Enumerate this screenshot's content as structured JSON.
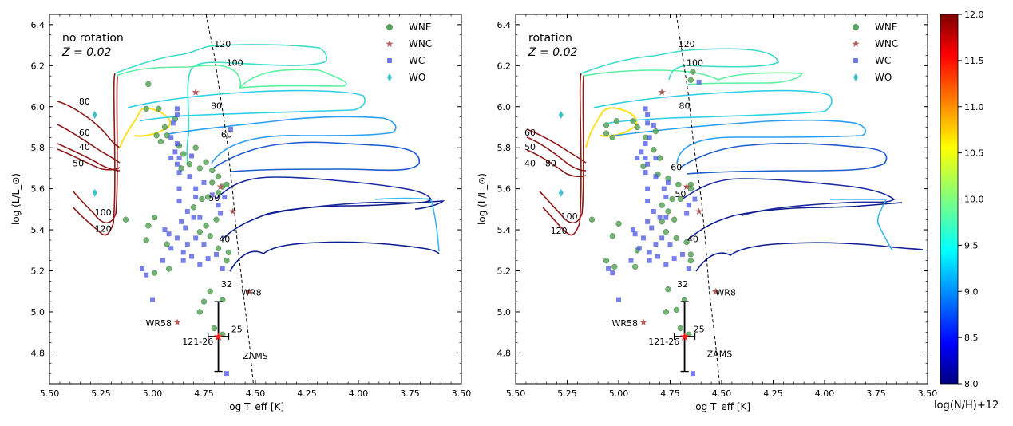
{
  "colorbar": {
    "label": "log(N/H)+12",
    "ticks": [
      "12.0",
      "11.5",
      "11.0",
      "10.5",
      "10.0",
      "9.5",
      "9.0",
      "8.5",
      "8.0"
    ],
    "range": [
      8.0,
      12.0
    ]
  },
  "chart_data": [
    {
      "type": "scatter",
      "panel": "left",
      "annotation_title": "no rotation",
      "annotation_z": "Z = 0.02",
      "xlabel": "log T_eff  [K]",
      "ylabel": "log (L/L_⊙)",
      "xlim": [
        5.5,
        3.5
      ],
      "ylim": [
        4.65,
        6.45
      ],
      "xticks": [
        "5.50",
        "5.25",
        "5.00",
        "4.75",
        "4.50",
        "4.25",
        "4.00",
        "3.75",
        "3.50"
      ],
      "yticks": [
        "4.8",
        "5.0",
        "5.2",
        "5.4",
        "5.6",
        "5.8",
        "6.0",
        "6.2",
        "6.4"
      ],
      "legend": [
        "WNE",
        "WNC",
        "WC",
        "WO"
      ],
      "track_labels": [
        {
          "text": "120",
          "x": 4.66,
          "y": 6.29
        },
        {
          "text": "100",
          "x": 4.6,
          "y": 6.2
        },
        {
          "text": "80",
          "x": 4.69,
          "y": 5.99
        },
        {
          "text": "60",
          "x": 4.64,
          "y": 5.85
        },
        {
          "text": "50",
          "x": 4.7,
          "y": 5.54
        },
        {
          "text": "40",
          "x": 4.65,
          "y": 5.34
        },
        {
          "text": "32",
          "x": 4.64,
          "y": 5.12
        },
        {
          "text": "25",
          "x": 4.59,
          "y": 4.9
        },
        {
          "text": "80",
          "x": 5.33,
          "y": 6.01
        },
        {
          "text": "60",
          "x": 5.33,
          "y": 5.86
        },
        {
          "text": "40",
          "x": 5.33,
          "y": 5.79
        },
        {
          "text": "50",
          "x": 5.36,
          "y": 5.71
        },
        {
          "text": "100",
          "x": 5.24,
          "y": 5.47
        },
        {
          "text": "120",
          "x": 5.24,
          "y": 5.39
        },
        {
          "text": "ZAMS",
          "x": 4.5,
          "y": 4.77
        },
        {
          "text": "WR8",
          "x": 4.52,
          "y": 5.08
        },
        {
          "text": "WR58",
          "x": 4.97,
          "y": 4.93
        },
        {
          "text": "121-26",
          "x": 4.78,
          "y": 4.84
        }
      ],
      "wne": [
        [
          5.02,
          6.11
        ],
        [
          5.03,
          5.99
        ],
        [
          4.97,
          5.99
        ],
        [
          4.94,
          5.9
        ],
        [
          4.98,
          5.86
        ],
        [
          4.96,
          5.83
        ],
        [
          4.93,
          5.86
        ],
        [
          4.89,
          5.94
        ],
        [
          4.87,
          5.81
        ],
        [
          4.85,
          5.77
        ],
        [
          4.86,
          5.7
        ],
        [
          4.82,
          5.72
        ],
        [
          4.79,
          5.8
        ],
        [
          4.77,
          5.7
        ],
        [
          4.74,
          5.73
        ],
        [
          4.71,
          5.69
        ],
        [
          4.68,
          5.66
        ],
        [
          4.66,
          5.61
        ],
        [
          4.71,
          5.63
        ],
        [
          4.76,
          5.55
        ],
        [
          4.73,
          5.56
        ],
        [
          4.8,
          5.51
        ],
        [
          4.74,
          5.42
        ],
        [
          4.69,
          5.45
        ],
        [
          4.77,
          5.39
        ],
        [
          4.72,
          5.37
        ],
        [
          4.68,
          5.31
        ],
        [
          4.63,
          5.29
        ],
        [
          4.64,
          5.25
        ],
        [
          4.93,
          5.33
        ],
        [
          4.99,
          5.46
        ],
        [
          5.02,
          5.42
        ],
        [
          5.03,
          5.35
        ],
        [
          4.99,
          5.19
        ],
        [
          4.92,
          5.21
        ],
        [
          4.72,
          5.1
        ],
        [
          4.66,
          5.06
        ],
        [
          4.75,
          5.05
        ],
        [
          4.77,
          5.0
        ],
        [
          4.7,
          4.92
        ],
        [
          4.66,
          4.89
        ],
        [
          5.13,
          5.45
        ],
        [
          4.64,
          5.62
        ],
        [
          4.68,
          5.58
        ]
      ],
      "wnc": [
        [
          4.79,
          6.07
        ],
        [
          4.67,
          5.61
        ],
        [
          4.61,
          5.49
        ],
        [
          4.53,
          5.1
        ],
        [
          4.88,
          4.95
        ]
      ],
      "wc": [
        [
          4.88,
          5.99
        ],
        [
          4.88,
          5.96
        ],
        [
          4.9,
          5.92
        ],
        [
          4.91,
          5.85
        ],
        [
          4.88,
          5.82
        ],
        [
          4.89,
          5.78
        ],
        [
          4.87,
          5.75
        ],
        [
          4.88,
          5.72
        ],
        [
          4.87,
          5.68
        ],
        [
          4.81,
          5.76
        ],
        [
          4.82,
          5.66
        ],
        [
          4.75,
          5.63
        ],
        [
          4.79,
          5.6
        ],
        [
          4.79,
          5.56
        ],
        [
          4.87,
          5.6
        ],
        [
          4.87,
          5.54
        ],
        [
          4.83,
          5.49
        ],
        [
          4.8,
          5.46
        ],
        [
          4.86,
          5.44
        ],
        [
          4.84,
          5.41
        ],
        [
          4.77,
          5.46
        ],
        [
          4.79,
          5.36
        ],
        [
          4.75,
          5.33
        ],
        [
          4.83,
          5.33
        ],
        [
          4.85,
          5.29
        ],
        [
          4.88,
          5.36
        ],
        [
          4.92,
          5.38
        ],
        [
          4.94,
          5.4
        ],
        [
          4.91,
          5.31
        ],
        [
          4.95,
          5.25
        ],
        [
          4.85,
          5.25
        ],
        [
          4.81,
          5.27
        ],
        [
          4.77,
          5.23
        ],
        [
          4.73,
          5.26
        ],
        [
          4.69,
          5.28
        ],
        [
          4.66,
          5.21
        ],
        [
          4.62,
          5.89
        ],
        [
          4.71,
          5.57
        ],
        [
          4.68,
          5.52
        ],
        [
          4.65,
          5.56
        ],
        [
          4.67,
          5.48
        ],
        [
          5.05,
          5.21
        ],
        [
          5.03,
          5.18
        ],
        [
          5.0,
          5.06
        ],
        [
          4.64,
          4.7
        ],
        [
          4.91,
          5.75
        ]
      ],
      "wo": [
        [
          5.28,
          5.58
        ],
        [
          5.28,
          5.96
        ]
      ],
      "obs_point": {
        "x": 4.68,
        "y": 4.88,
        "xerr": 0.05,
        "yerr": 0.17
      },
      "zams": [
        [
          4.74,
          6.45
        ],
        [
          4.7,
          6.25
        ],
        [
          4.67,
          6.05
        ],
        [
          4.64,
          5.85
        ],
        [
          4.61,
          5.58
        ],
        [
          4.59,
          5.36
        ],
        [
          4.56,
          5.1
        ],
        [
          4.53,
          4.85
        ],
        [
          4.51,
          4.65
        ]
      ]
    },
    {
      "type": "scatter",
      "panel": "right",
      "annotation_title": "rotation",
      "annotation_z": "Z = 0.02",
      "xlabel": "log T_eff  [K]",
      "ylabel": "log (L/L_⊙)",
      "xlim": [
        5.5,
        3.5
      ],
      "ylim": [
        4.65,
        6.45
      ],
      "xticks": [
        "5.50",
        "5.25",
        "5.00",
        "4.75",
        "4.50",
        "4.25",
        "4.00",
        "3.75",
        "3.50"
      ],
      "yticks": [
        "4.8",
        "5.0",
        "5.2",
        "5.4",
        "5.6",
        "5.8",
        "6.0",
        "6.2",
        "6.4"
      ],
      "legend": [
        "WNE",
        "WNC",
        "WC",
        "WO"
      ],
      "track_labels": [
        {
          "text": "120",
          "x": 4.67,
          "y": 6.29
        },
        {
          "text": "100",
          "x": 4.63,
          "y": 6.2
        },
        {
          "text": "80",
          "x": 4.68,
          "y": 5.99
        },
        {
          "text": "60",
          "x": 4.72,
          "y": 5.69
        },
        {
          "text": "50",
          "x": 4.7,
          "y": 5.56
        },
        {
          "text": "40",
          "x": 4.64,
          "y": 5.34
        },
        {
          "text": "32",
          "x": 4.69,
          "y": 5.12
        },
        {
          "text": "25",
          "x": 4.61,
          "y": 4.9
        },
        {
          "text": "60",
          "x": 5.43,
          "y": 5.86
        },
        {
          "text": "50",
          "x": 5.43,
          "y": 5.79
        },
        {
          "text": "40",
          "x": 5.43,
          "y": 5.71
        },
        {
          "text": "80",
          "x": 5.33,
          "y": 5.71
        },
        {
          "text": "100",
          "x": 5.24,
          "y": 5.45
        },
        {
          "text": "120",
          "x": 5.29,
          "y": 5.38
        },
        {
          "text": "ZAMS",
          "x": 4.51,
          "y": 4.78
        },
        {
          "text": "WR8",
          "x": 4.48,
          "y": 5.08
        },
        {
          "text": "WR58",
          "x": 4.97,
          "y": 4.93
        },
        {
          "text": "121-26",
          "x": 4.78,
          "y": 4.84
        }
      ],
      "wne": [
        [
          5.06,
          5.91
        ],
        [
          5.06,
          5.87
        ],
        [
          5.03,
          5.85
        ],
        [
          5.01,
          5.93
        ],
        [
          4.93,
          5.93
        ],
        [
          4.91,
          5.9
        ],
        [
          4.87,
          5.85
        ],
        [
          4.83,
          5.79
        ],
        [
          4.8,
          5.75
        ],
        [
          4.82,
          5.88
        ],
        [
          4.88,
          5.71
        ],
        [
          4.81,
          5.67
        ],
        [
          4.76,
          5.65
        ],
        [
          4.71,
          5.62
        ],
        [
          4.65,
          5.62
        ],
        [
          4.65,
          5.6
        ],
        [
          4.7,
          5.55
        ],
        [
          4.74,
          5.55
        ],
        [
          4.79,
          5.52
        ],
        [
          4.76,
          5.49
        ],
        [
          4.79,
          5.44
        ],
        [
          4.73,
          5.45
        ],
        [
          4.77,
          5.39
        ],
        [
          4.72,
          5.36
        ],
        [
          4.67,
          5.34
        ],
        [
          4.65,
          5.28
        ],
        [
          4.65,
          5.25
        ],
        [
          4.91,
          5.3
        ],
        [
          5.0,
          5.43
        ],
        [
          5.03,
          5.37
        ],
        [
          5.06,
          5.25
        ],
        [
          5.02,
          5.22
        ],
        [
          4.92,
          5.22
        ],
        [
          4.76,
          5.11
        ],
        [
          4.68,
          5.06
        ],
        [
          4.72,
          5.01
        ],
        [
          4.77,
          5.0
        ],
        [
          4.7,
          4.92
        ],
        [
          4.66,
          4.89
        ],
        [
          5.13,
          5.45
        ],
        [
          4.64,
          6.17
        ],
        [
          4.65,
          6.13
        ]
      ],
      "wnc": [
        [
          4.79,
          6.07
        ],
        [
          4.67,
          5.61
        ],
        [
          4.61,
          5.49
        ],
        [
          4.53,
          5.1
        ],
        [
          4.88,
          4.95
        ]
      ],
      "wc": [
        [
          4.87,
          5.99
        ],
        [
          4.86,
          5.96
        ],
        [
          4.86,
          5.92
        ],
        [
          4.85,
          5.85
        ],
        [
          4.87,
          5.82
        ],
        [
          4.89,
          5.78
        ],
        [
          4.87,
          5.75
        ],
        [
          4.86,
          5.72
        ],
        [
          4.87,
          5.68
        ],
        [
          4.82,
          5.75
        ],
        [
          4.82,
          5.66
        ],
        [
          4.76,
          5.63
        ],
        [
          4.78,
          5.6
        ],
        [
          4.77,
          5.56
        ],
        [
          4.86,
          5.6
        ],
        [
          4.86,
          5.54
        ],
        [
          4.83,
          5.49
        ],
        [
          4.8,
          5.46
        ],
        [
          4.86,
          5.44
        ],
        [
          4.84,
          5.41
        ],
        [
          4.77,
          5.46
        ],
        [
          4.79,
          5.36
        ],
        [
          4.75,
          5.33
        ],
        [
          4.82,
          5.33
        ],
        [
          4.85,
          5.29
        ],
        [
          4.88,
          5.36
        ],
        [
          4.92,
          5.38
        ],
        [
          4.93,
          5.4
        ],
        [
          4.9,
          5.31
        ],
        [
          4.94,
          5.25
        ],
        [
          4.85,
          5.25
        ],
        [
          4.81,
          5.27
        ],
        [
          4.77,
          5.23
        ],
        [
          4.73,
          5.26
        ],
        [
          4.69,
          5.28
        ],
        [
          4.66,
          5.21
        ],
        [
          4.61,
          6.12
        ],
        [
          4.63,
          5.55
        ],
        [
          4.66,
          5.52
        ],
        [
          4.67,
          5.48
        ],
        [
          5.05,
          5.21
        ],
        [
          5.03,
          5.19
        ],
        [
          5.0,
          5.06
        ],
        [
          4.64,
          4.7
        ],
        [
          4.91,
          5.75
        ],
        [
          4.83,
          5.91
        ]
      ],
      "wo": [
        [
          5.28,
          5.58
        ],
        [
          5.28,
          5.96
        ]
      ],
      "obs_point": {
        "x": 4.68,
        "y": 4.88,
        "xerr": 0.05,
        "yerr": 0.17
      },
      "zams": [
        [
          4.72,
          6.45
        ],
        [
          4.69,
          6.25
        ],
        [
          4.66,
          6.05
        ],
        [
          4.64,
          5.85
        ],
        [
          4.62,
          5.7
        ],
        [
          4.6,
          5.56
        ],
        [
          4.58,
          5.36
        ],
        [
          4.56,
          5.1
        ],
        [
          4.53,
          4.85
        ],
        [
          4.51,
          4.65
        ]
      ]
    }
  ]
}
